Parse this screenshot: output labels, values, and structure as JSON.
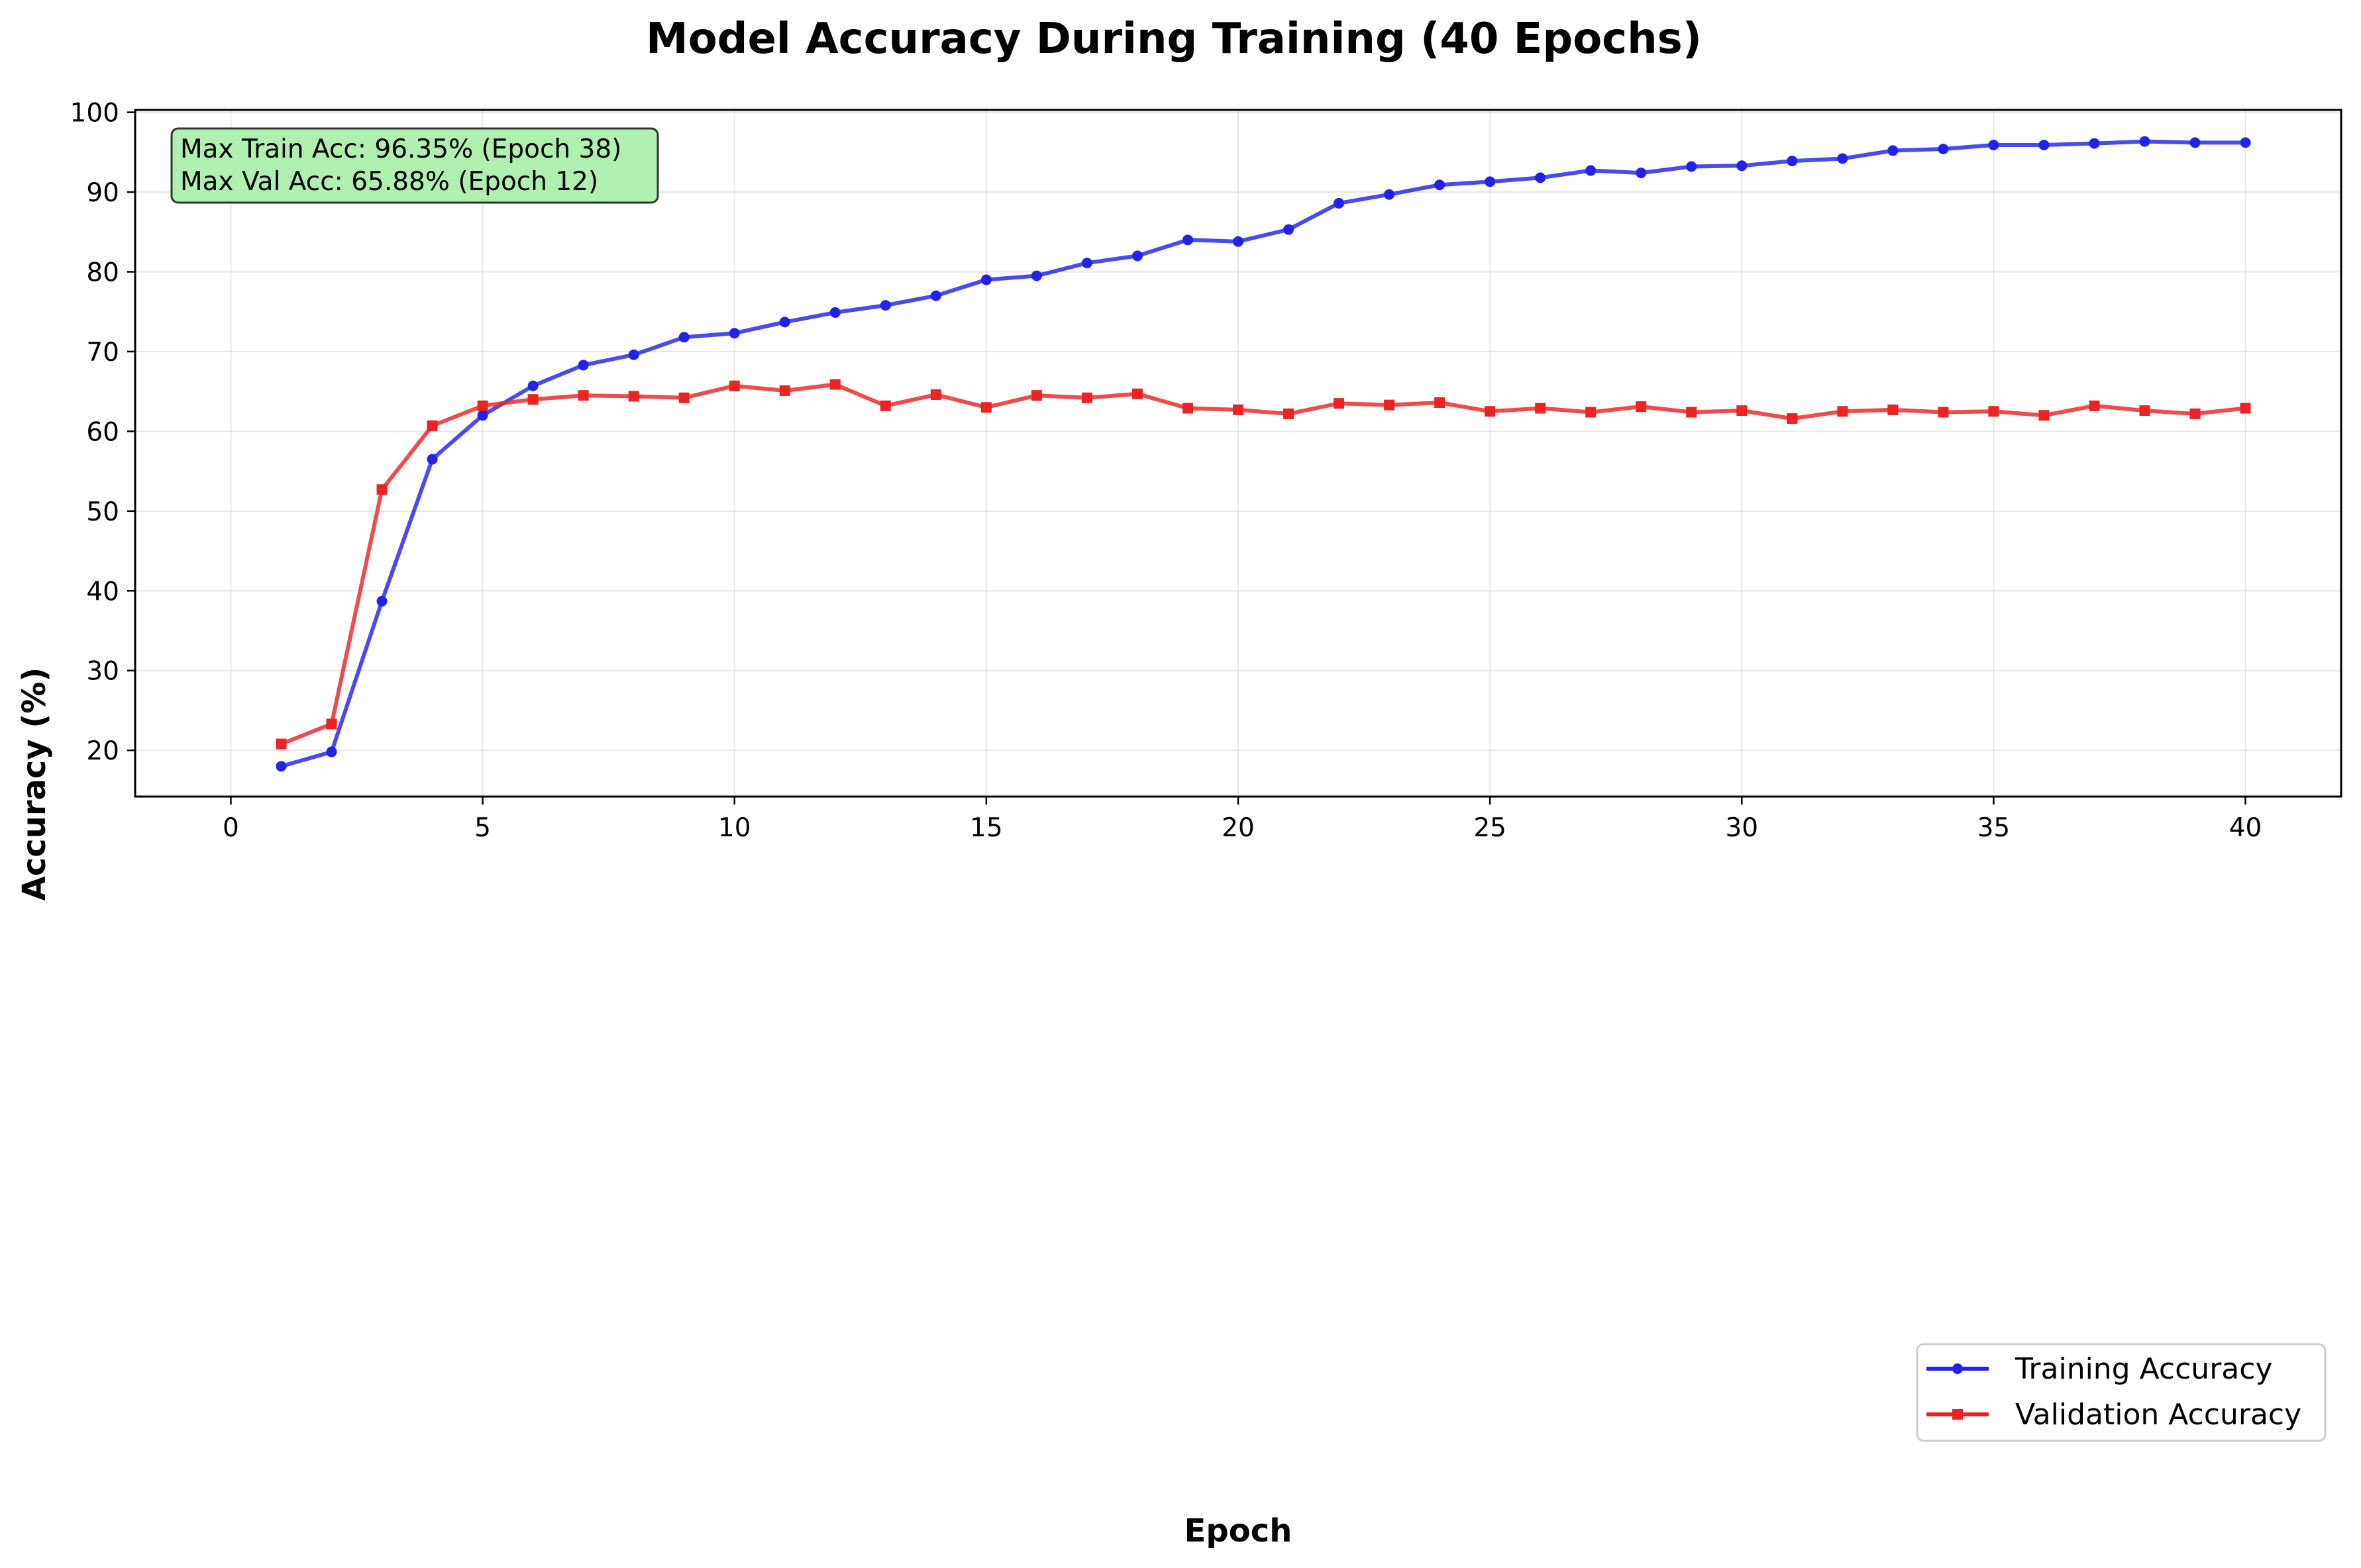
{
  "chart_data": {
    "type": "line",
    "title": "Model Accuracy During Training (40 Epochs)",
    "xlabel": "Epoch",
    "ylabel": "Accuracy (%)",
    "xlim": [
      -1.9,
      41.9
    ],
    "ylim": [
      14.2,
      100.3
    ],
    "xticks": [
      0,
      5,
      10,
      15,
      20,
      25,
      30,
      35,
      40
    ],
    "yticks": [
      20,
      30,
      40,
      50,
      60,
      70,
      80,
      90,
      100
    ],
    "grid": true,
    "legend_position": "bottom-right",
    "x": [
      1,
      2,
      3,
      4,
      5,
      6,
      7,
      8,
      9,
      10,
      11,
      12,
      13,
      14,
      15,
      16,
      17,
      18,
      19,
      20,
      21,
      22,
      23,
      24,
      25,
      26,
      27,
      28,
      29,
      30,
      31,
      32,
      33,
      34,
      35,
      36,
      37,
      38,
      39,
      40
    ],
    "series": [
      {
        "name": "Training Accuracy",
        "color": "#2222ee",
        "marker": "circle",
        "values": [
          18.0,
          19.8,
          38.7,
          56.5,
          62.0,
          65.7,
          68.3,
          69.6,
          71.8,
          72.3,
          73.7,
          74.9,
          75.8,
          77.0,
          79.0,
          79.5,
          81.1,
          82.0,
          84.0,
          83.8,
          85.3,
          88.6,
          89.7,
          90.9,
          91.3,
          91.8,
          92.7,
          92.4,
          93.2,
          93.3,
          93.9,
          94.2,
          95.2,
          95.4,
          95.9,
          95.9,
          96.1,
          96.35,
          96.2,
          96.2
        ]
      },
      {
        "name": "Validation Accuracy",
        "color": "#ee2222",
        "marker": "square",
        "values": [
          20.8,
          23.3,
          52.7,
          60.7,
          63.2,
          64.0,
          64.5,
          64.4,
          64.2,
          65.7,
          65.1,
          65.88,
          63.2,
          64.6,
          63.0,
          64.5,
          64.2,
          64.7,
          62.9,
          62.7,
          62.2,
          63.5,
          63.3,
          63.6,
          62.5,
          62.9,
          62.4,
          63.1,
          62.4,
          62.6,
          61.6,
          62.5,
          62.7,
          62.4,
          62.5,
          62.0,
          63.2,
          62.6,
          62.2,
          62.9
        ]
      }
    ],
    "annotation": {
      "lines": [
        "Max Train Acc: 96.35% (Epoch 38)",
        "Max Val Acc: 65.88% (Epoch 12)"
      ],
      "background": "#aef0ae"
    }
  }
}
